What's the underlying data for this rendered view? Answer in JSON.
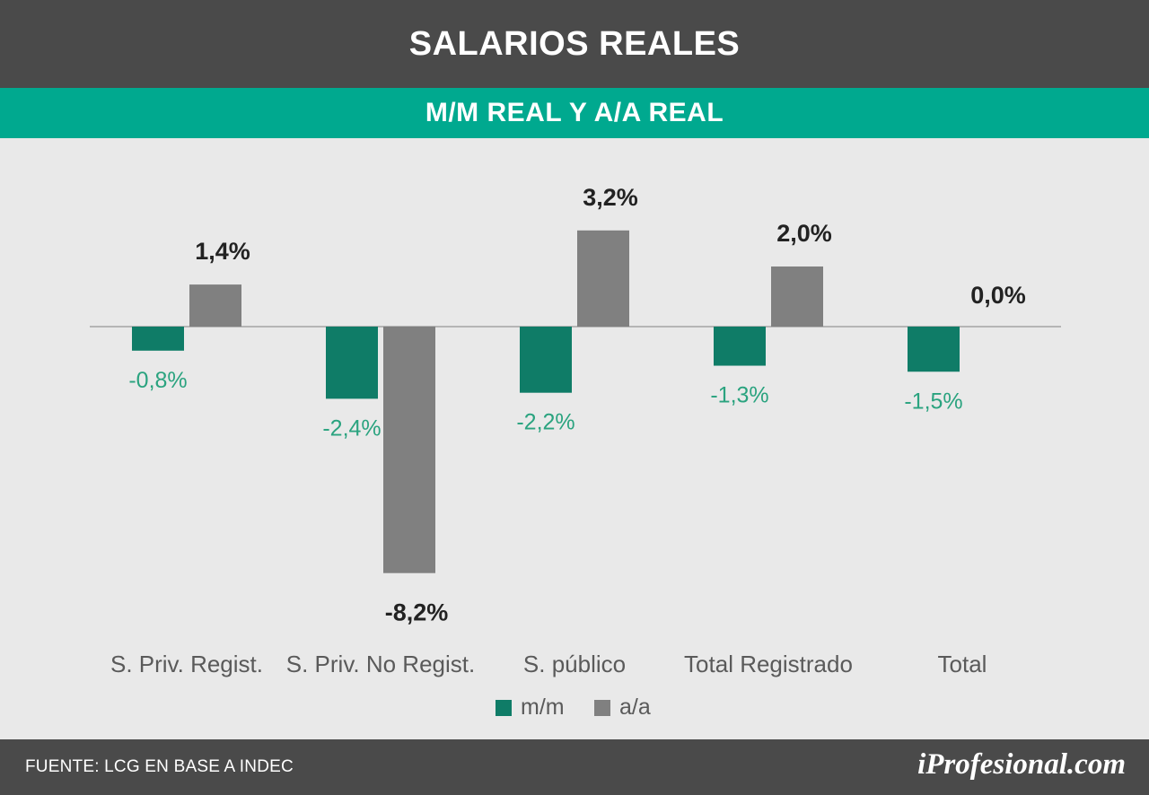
{
  "header": {
    "title": "SALARIOS REALES",
    "subtitle": "M/M REAL Y A/A REAL"
  },
  "footer": {
    "source": "FUENTE: LCG EN BASE A INDEC",
    "brand": "iProfesional.com"
  },
  "chart_data": {
    "type": "bar",
    "categories": [
      "S. Priv. Regist.",
      "S. Priv. No Regist.",
      "S. público",
      "Total Registrado",
      "Total"
    ],
    "series": [
      {
        "name": "m/m",
        "values": [
          -0.8,
          -2.4,
          -2.2,
          -1.3,
          -1.5
        ],
        "labels": [
          "-0,8%",
          "-2,4%",
          "-2,2%",
          "-1,3%",
          "-1,5%"
        ],
        "color": "#0f7c67",
        "label_color": "#2aa37f"
      },
      {
        "name": "a/a",
        "values": [
          1.4,
          -8.2,
          3.2,
          2.0,
          0.0
        ],
        "labels": [
          "1,4%",
          "-8,2%",
          "3,2%",
          "2,0%",
          "0,0%"
        ],
        "color": "#808080",
        "label_color": "#222222"
      }
    ],
    "legend_position": "bottom",
    "grid": false,
    "ylim": [
      -9.5,
      5
    ]
  }
}
